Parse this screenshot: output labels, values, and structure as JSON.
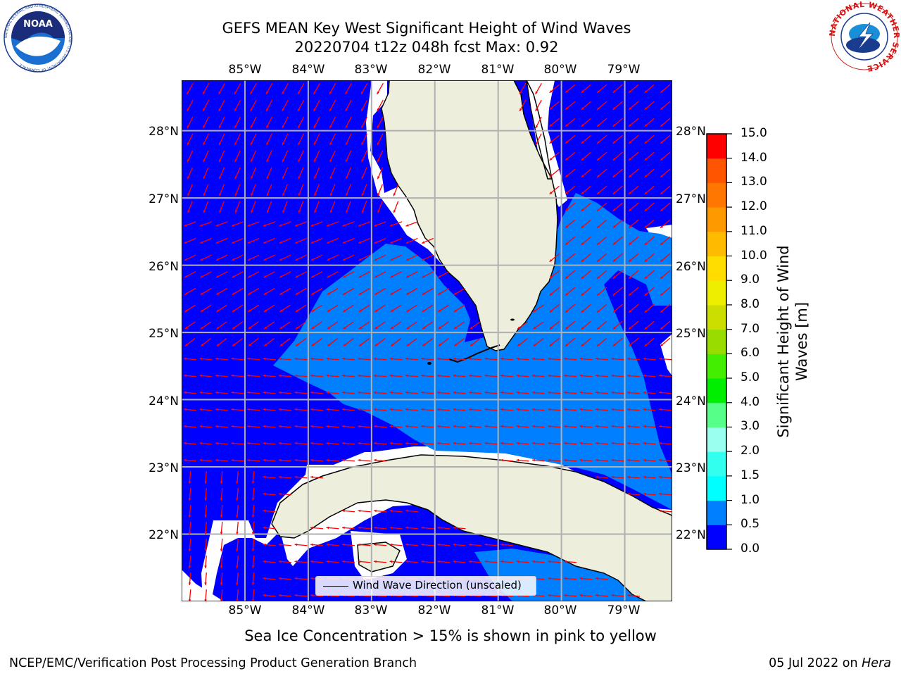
{
  "header": {
    "title_line1": "GEFS MEAN Key West Significant Height of Wind Waves",
    "title_line2": "20220704 t12z 048h fcst   Max: 0.92"
  },
  "logos": {
    "left_text": "NOAA",
    "left_ring_text": "NATIONAL OCEANIC AND ATMOSPHERIC ADMINISTRATION · U.S. DEPARTMENT OF COMMERCE",
    "right_ring_text": "NATIONAL WEATHER SERVICE"
  },
  "map": {
    "lon_labels": [
      "85°W",
      "84°W",
      "83°W",
      "82°W",
      "81°W",
      "80°W",
      "79°W"
    ],
    "lat_labels": [
      "28°N",
      "27°N",
      "26°N",
      "25°N",
      "24°N",
      "23°N",
      "22°N"
    ],
    "extent": {
      "lon_min": -86.0,
      "lon_max": -78.25,
      "lat_min": 21.0,
      "lat_max": 28.75
    },
    "land_color": "#eeeedd",
    "ocean_bin0_color": "#0000ff",
    "ocean_bin1_color": "#0080ff",
    "arrow_color": "#ff0000"
  },
  "legend": {
    "label": "Wind Wave Direction (unscaled)"
  },
  "colorbar": {
    "label": "Significant Height of Wind Waves [m]",
    "ticks": [
      "0.0",
      "0.5",
      "1.0",
      "1.5",
      "2.0",
      "3.0",
      "4.0",
      "5.0",
      "6.0",
      "7.0",
      "8.0",
      "9.0",
      "10.0",
      "11.0",
      "12.0",
      "13.0",
      "14.0",
      "15.0"
    ],
    "colors": [
      "#0000ff",
      "#0080ff",
      "#00ffff",
      "#33ffee",
      "#99ffee",
      "#55ff88",
      "#00ee00",
      "#44ee00",
      "#99dd00",
      "#ccdd00",
      "#eeee00",
      "#ffdd00",
      "#ffbb00",
      "#ff9900",
      "#ff7700",
      "#ff5500",
      "#ff0000"
    ]
  },
  "note": "Sea Ice Concentration > 15% is shown in pink to yellow",
  "footer": {
    "left": "NCEP/EMC/Verification Post Processing Product Generation Branch",
    "right_date": "05 Jul 2022 on ",
    "right_host": "Hera"
  }
}
